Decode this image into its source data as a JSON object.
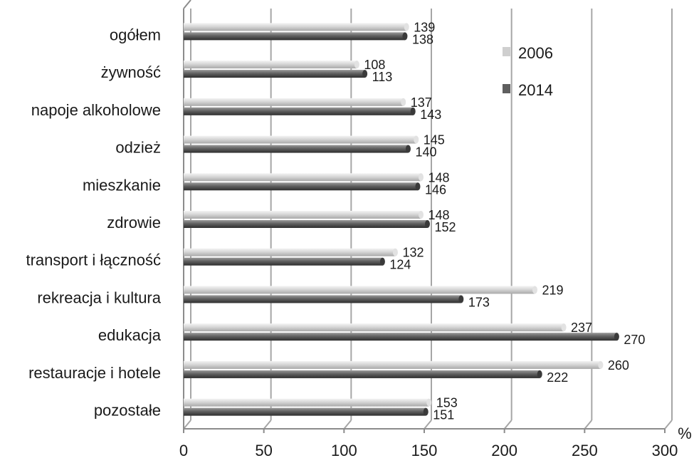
{
  "chart_data": {
    "type": "bar",
    "orientation": "horizontal",
    "categories": [
      "ogółem",
      "żywność",
      "napoje alkoholowe",
      "odzież",
      "mieszkanie",
      "zdrowie",
      "transport i łączność",
      "rekreacja i kultura",
      "edukacja",
      "restauracje i hotele",
      "pozostałe"
    ],
    "series": [
      {
        "name": "2006",
        "color": "#cfcfcf",
        "values": [
          139,
          108,
          137,
          145,
          148,
          148,
          132,
          219,
          237,
          260,
          153
        ]
      },
      {
        "name": "2014",
        "color": "#5f5f5f",
        "values": [
          138,
          113,
          143,
          140,
          146,
          152,
          124,
          173,
          270,
          222,
          151
        ]
      }
    ],
    "xlim": [
      0,
      300
    ],
    "xticks": [
      "0",
      "50",
      "100",
      "150",
      "200",
      "250",
      "300"
    ],
    "unit": "%",
    "grid": true,
    "legend_position": "top-right",
    "title": "",
    "xlabel": "",
    "ylabel": ""
  }
}
